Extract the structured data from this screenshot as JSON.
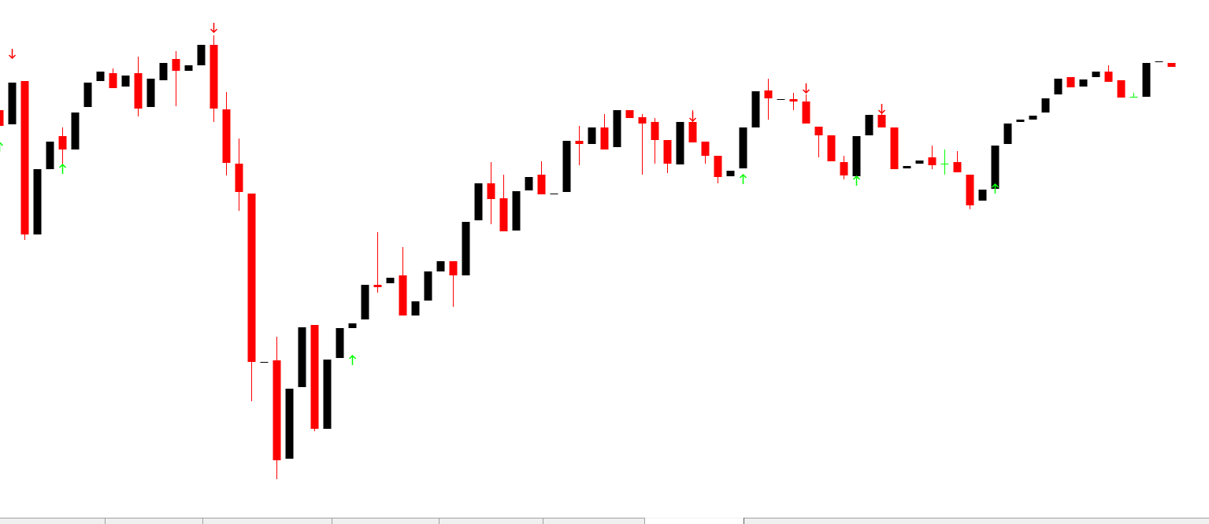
{
  "chart_data": {
    "type": "candlestick",
    "up_color": "#000000",
    "down_color": "#ff0000",
    "doji_color": "#00ff00",
    "buy_color": "#00ff00",
    "sell_color": "#ff0000",
    "ylim": [
      0,
      666
    ],
    "open": [
      526,
      508,
      563,
      368,
      451,
      493,
      476,
      530,
      563,
      573,
      556,
      573,
      530,
      564,
      591,
      576,
      583,
      609,
      527,
      458,
      420,
      205,
      208,
      83,
      174,
      253,
      121,
      211,
      249,
      260,
      304,
      306,
      316,
      265,
      284,
      321,
      334,
      316,
      386,
      433,
      414,
      373,
      424,
      444,
      419,
      422,
      487,
      483,
      504,
      479,
      526,
      517,
      511,
      488,
      457,
      511,
      486,
      468,
      442,
      452,
      504,
      551,
      539,
      540,
      537,
      505,
      494,
      460,
      442,
      494,
      520,
      504,
      452,
      458,
      466,
      458,
      460,
      444,
      411,
      426,
      483,
      511,
      514,
      523,
      546,
      568,
      556,
      568,
      575,
      564,
      543,
      543,
      587,
      586
    ],
    "high": [
      526,
      561,
      563,
      451,
      486,
      504,
      523,
      561,
      575,
      579,
      570,
      594,
      566,
      586,
      601,
      583,
      609,
      621,
      549,
      490,
      420,
      206,
      238,
      172,
      250,
      253,
      209,
      249,
      255,
      304,
      371,
      313,
      352,
      283,
      321,
      334,
      334,
      384,
      433,
      460,
      444,
      423,
      441,
      461,
      420,
      487,
      506,
      504,
      521,
      526,
      526,
      521,
      516,
      488,
      511,
      526,
      486,
      468,
      449,
      504,
      550,
      566,
      540,
      548,
      546,
      505,
      494,
      468,
      493,
      520,
      526,
      504,
      455,
      462,
      481,
      476,
      474,
      444,
      425,
      481,
      509,
      514,
      519,
      541,
      566,
      568,
      565,
      575,
      583,
      564,
      548,
      586,
      588,
      586
    ],
    "low": [
      506,
      508,
      361,
      368,
      451,
      456,
      476,
      530,
      563,
      554,
      556,
      518,
      530,
      564,
      531,
      576,
      583,
      511,
      443,
      398,
      156,
      205,
      57,
      83,
      174,
      118,
      121,
      211,
      249,
      260,
      294,
      306,
      265,
      265,
      284,
      321,
      276,
      316,
      386,
      381,
      372,
      373,
      424,
      419,
      419,
      422,
      456,
      483,
      476,
      479,
      516,
      444,
      458,
      446,
      457,
      485,
      458,
      433,
      442,
      452,
      504,
      514,
      539,
      526,
      509,
      466,
      461,
      438,
      442,
      494,
      504,
      451,
      452,
      458,
      451,
      444,
      447,
      400,
      411,
      426,
      483,
      511,
      514,
      523,
      546,
      555,
      556,
      568,
      562,
      542,
      543,
      543,
      587,
      581
    ],
    "close": [
      506,
      561,
      368,
      451,
      486,
      476,
      523,
      561,
      575,
      554,
      570,
      528,
      566,
      586,
      576,
      583,
      609,
      528,
      459,
      422,
      206,
      206,
      81,
      172,
      250,
      121,
      209,
      249,
      255,
      304,
      301,
      313,
      265,
      283,
      321,
      334,
      316,
      384,
      433,
      413,
      372,
      423,
      441,
      419,
      420,
      487,
      483,
      504,
      476,
      526,
      516,
      509,
      488,
      458,
      511,
      485,
      468,
      441,
      449,
      504,
      550,
      541,
      540,
      537,
      509,
      494,
      461,
      443,
      493,
      520,
      504,
      451,
      455,
      462,
      456,
      458,
      447,
      405,
      425,
      481,
      509,
      514,
      519,
      541,
      566,
      555,
      565,
      575,
      562,
      542,
      543,
      586,
      588,
      581
    ],
    "buy_signals": [
      {
        "index": 0,
        "value": 479
      },
      {
        "index": 5,
        "value": 451
      },
      {
        "index": 28,
        "value": 208
      },
      {
        "index": 59,
        "value": 438
      },
      {
        "index": 68,
        "value": 436
      },
      {
        "index": 79,
        "value": 426
      }
    ],
    "sell_signals": [
      {
        "index": 1,
        "value": 598
      },
      {
        "index": 17,
        "value": 631
      },
      {
        "index": 55,
        "value": 518
      },
      {
        "index": 64,
        "value": 554
      },
      {
        "index": 70,
        "value": 528
      }
    ]
  }
}
